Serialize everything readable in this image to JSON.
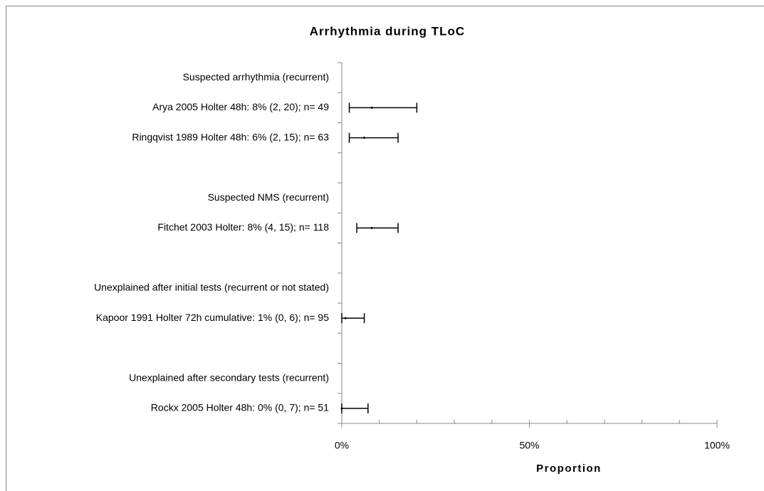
{
  "chart_data": {
    "type": "forest",
    "title": "Arrhythmia during TLoC",
    "x_label": "Proportion",
    "categories": [
      "Suspected arrhythmia (recurrent)",
      "Arya 2005 Holter 48h: 8% (2, 20); n= 49",
      "Ringqvist 1989 Holter 48h: 6% (2, 15); n= 63",
      null,
      "Suspected NMS (recurrent)",
      "Fitchet 2003 Holter: 8% (4, 15); n= 118",
      null,
      "Unexplained after initial tests (recurrent or not stated)",
      "Kapoor 1991 Holter 72h cumulative: 1% (0, 6); n= 95",
      null,
      "Unexplained after secondary tests (recurrent)",
      "Rockx 2005 Holter 48h: 0% (0, 7); n= 51"
    ],
    "values": [
      null,
      8,
      6,
      null,
      null,
      8,
      null,
      null,
      1,
      null,
      null,
      0
    ],
    "lower": [
      null,
      2,
      2,
      null,
      null,
      4,
      null,
      null,
      0,
      null,
      null,
      0
    ],
    "upper": [
      null,
      20,
      15,
      null,
      null,
      15,
      null,
      null,
      6,
      null,
      null,
      7
    ],
    "color": "#000000",
    "xlim": [
      0,
      100
    ],
    "xticks": [
      {
        "value": 0,
        "label": "0%"
      },
      {
        "value": 50,
        "label": "50%"
      },
      {
        "value": 100,
        "label": "100%"
      }
    ],
    "xminorticks": [
      0,
      10,
      20,
      30,
      40,
      50,
      60,
      70,
      80,
      90,
      100
    ]
  }
}
